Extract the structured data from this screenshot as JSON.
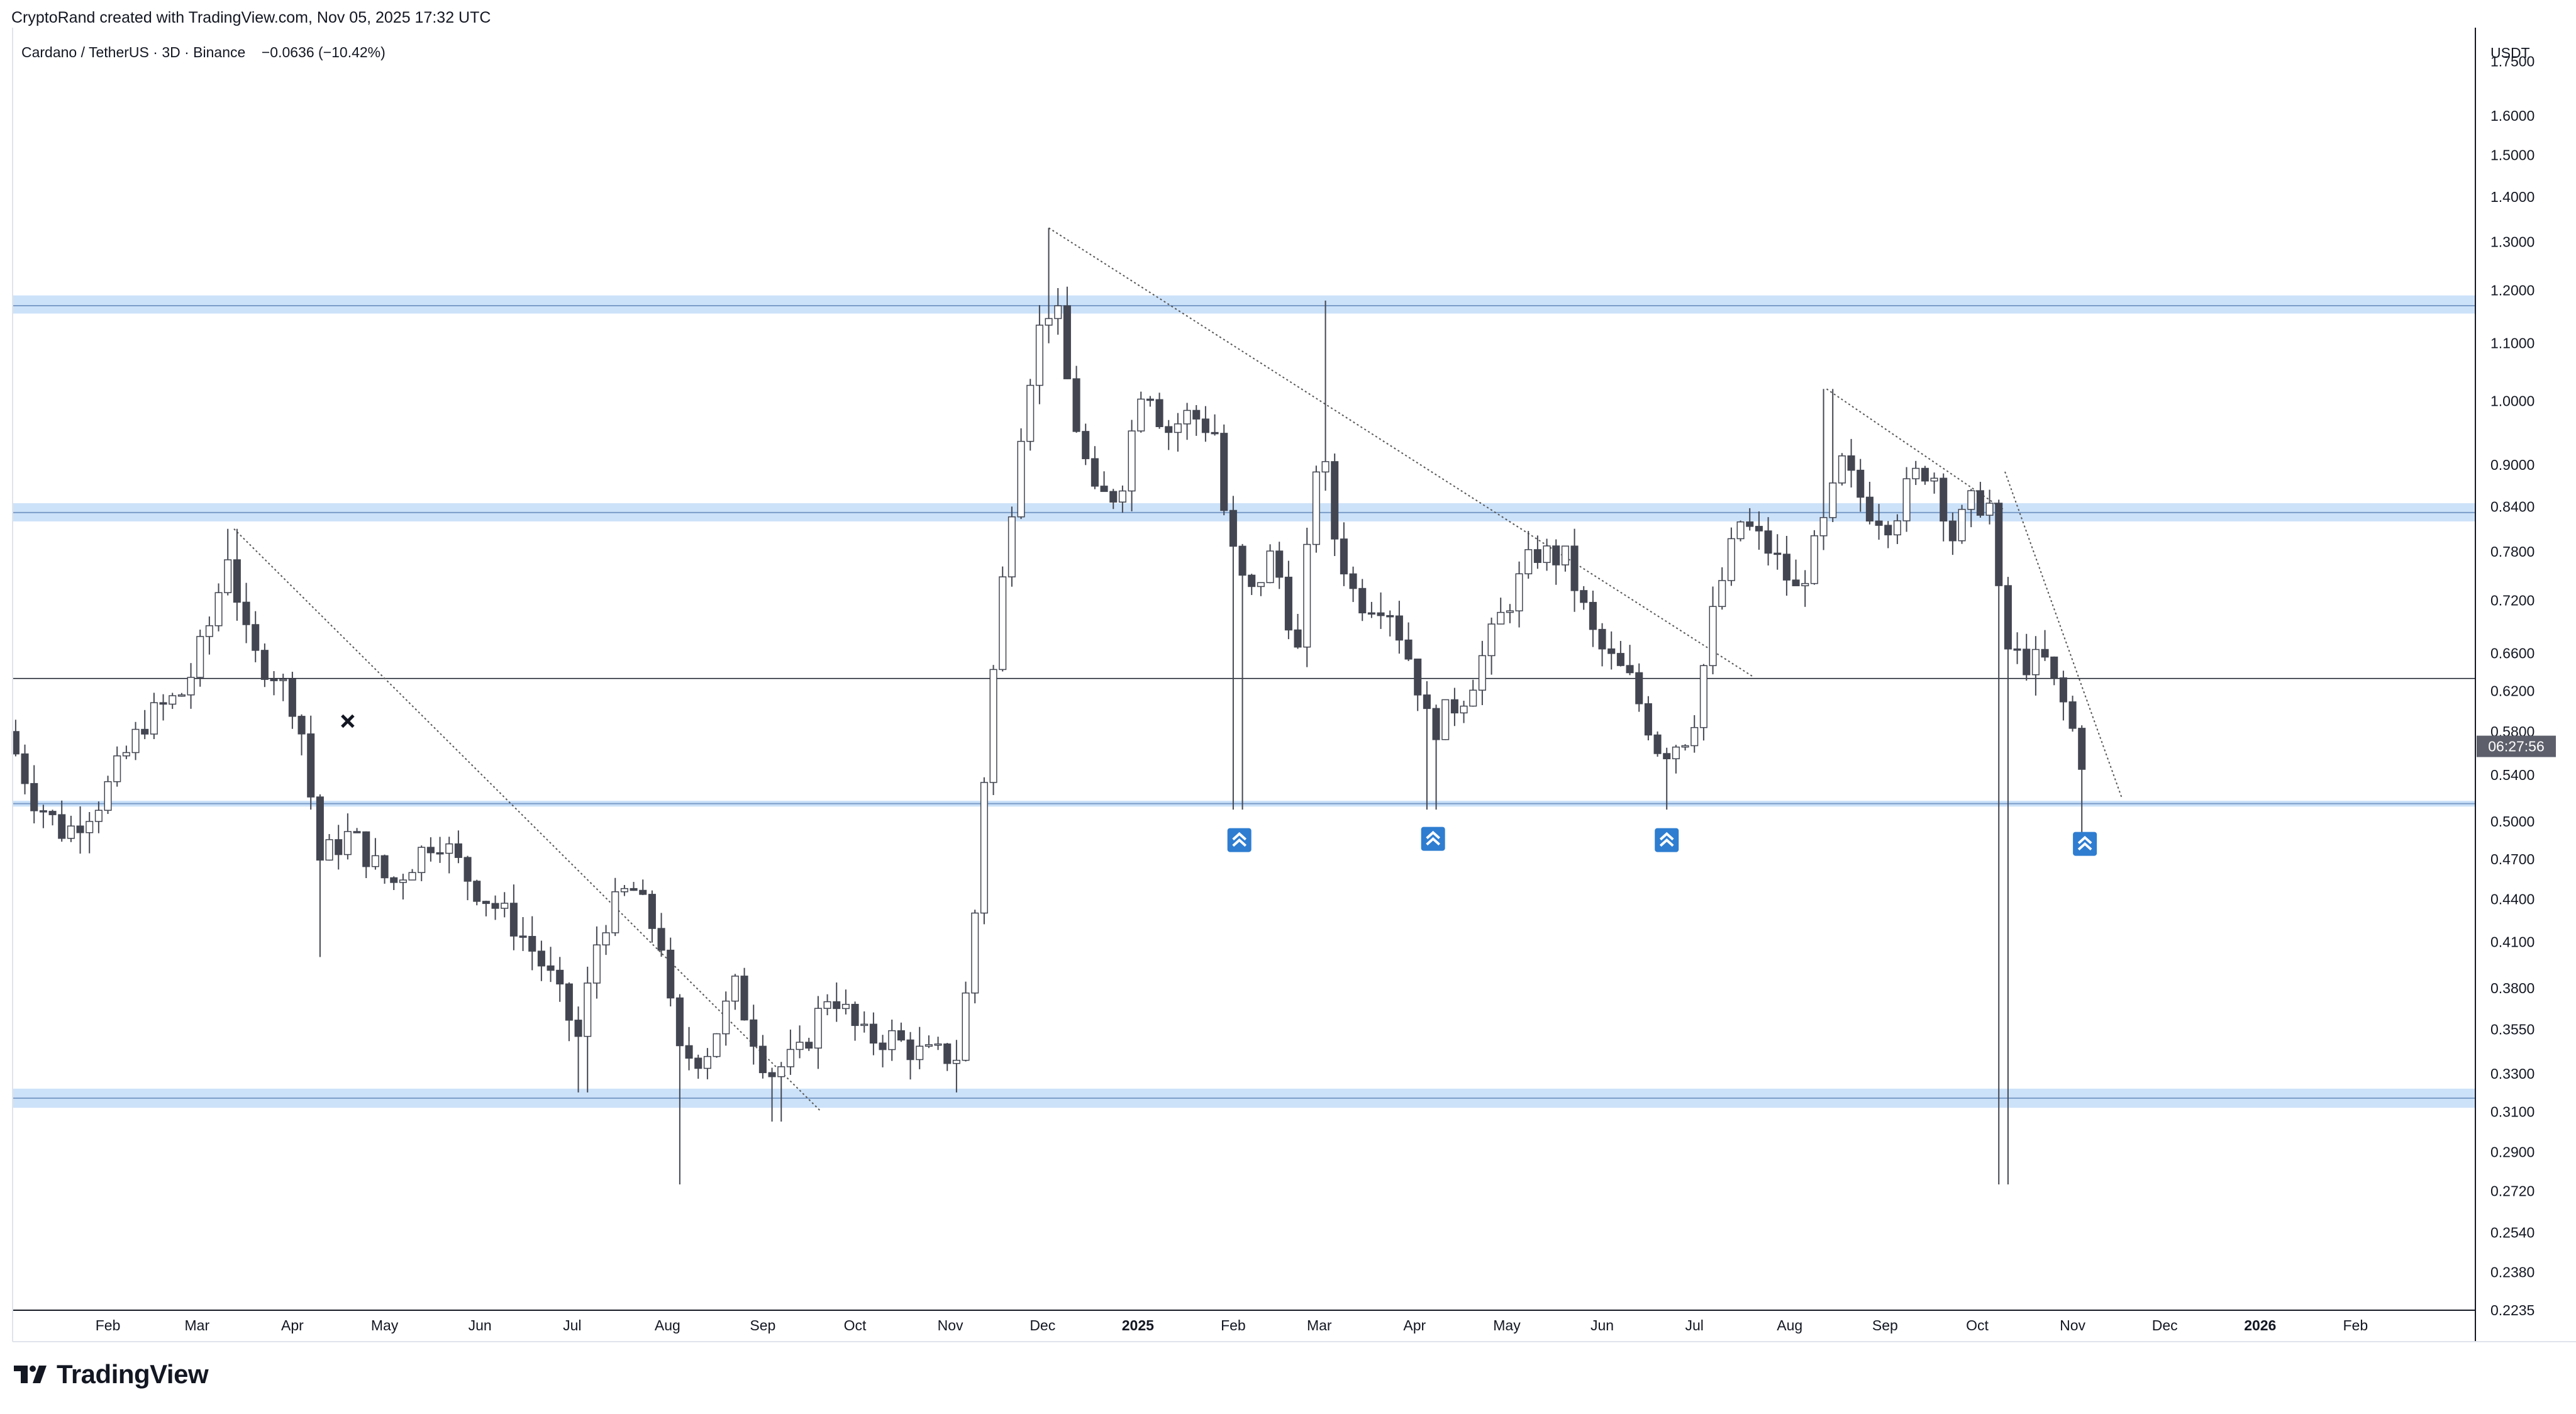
{
  "header": {
    "credit": "CryptoRand created with TradingView.com, Nov 05, 2025 17:32 UTC"
  },
  "symbol": {
    "name": "Cardano / TetherUS",
    "interval": "3D",
    "exchange": "Binance",
    "change": "−0.0636 (−10.42%)",
    "separator": "·"
  },
  "footer": {
    "brand": "TradingView"
  },
  "colors": {
    "up_candle": "#ffffff",
    "down_candle": "#434651",
    "wick": "#434651",
    "zone_fill": "#bbd8f7",
    "zone_line": "#7a9cc8",
    "marker": "#2e7dd1",
    "price_tag": "#5d606b"
  },
  "chart_data": {
    "type": "candlestick",
    "title": "Cardano / TetherUS · 3D · Binance",
    "quote_currency": "USDT",
    "scale": "log",
    "countdown_label": "06:27:56",
    "ylim": [
      0.2235,
      1.85
    ],
    "y_ticks": [
      "1.7500",
      "1.6000",
      "1.5000",
      "1.4000",
      "1.3000",
      "1.2000",
      "1.1000",
      "1.0000",
      "0.9000",
      "0.8400",
      "0.7800",
      "0.7200",
      "0.6600",
      "0.6200",
      "0.5800",
      "0.5400",
      "0.5000",
      "0.4700",
      "0.4400",
      "0.4100",
      "0.3800",
      "0.3550",
      "0.3300",
      "0.3100",
      "0.2900",
      "0.2720",
      "0.2540",
      "0.2380",
      "0.2235"
    ],
    "x_range": [
      "2024-01-01",
      "2026-03-12"
    ],
    "x_ticks": [
      {
        "date": "2024-02-01",
        "label": "Feb"
      },
      {
        "date": "2024-03-01",
        "label": "Mar"
      },
      {
        "date": "2024-04-01",
        "label": "Apr"
      },
      {
        "date": "2024-05-01",
        "label": "May"
      },
      {
        "date": "2024-06-01",
        "label": "Jun"
      },
      {
        "date": "2024-07-01",
        "label": "Jul"
      },
      {
        "date": "2024-08-01",
        "label": "Aug"
      },
      {
        "date": "2024-09-01",
        "label": "Sep"
      },
      {
        "date": "2024-10-01",
        "label": "Oct"
      },
      {
        "date": "2024-11-01",
        "label": "Nov"
      },
      {
        "date": "2024-12-01",
        "label": "Dec"
      },
      {
        "date": "2025-01-01",
        "label": "2025",
        "bold": true
      },
      {
        "date": "2025-02-01",
        "label": "Feb"
      },
      {
        "date": "2025-03-01",
        "label": "Mar"
      },
      {
        "date": "2025-04-01",
        "label": "Apr"
      },
      {
        "date": "2025-05-01",
        "label": "May"
      },
      {
        "date": "2025-06-01",
        "label": "Jun"
      },
      {
        "date": "2025-07-01",
        "label": "Jul"
      },
      {
        "date": "2025-08-01",
        "label": "Aug"
      },
      {
        "date": "2025-09-01",
        "label": "Sep"
      },
      {
        "date": "2025-10-01",
        "label": "Oct"
      },
      {
        "date": "2025-11-01",
        "label": "Nov"
      },
      {
        "date": "2025-12-01",
        "label": "Dec"
      },
      {
        "date": "2026-01-01",
        "label": "2026",
        "bold": true
      },
      {
        "date": "2026-02-01",
        "label": "Feb"
      }
    ],
    "price_path": [
      [
        "2024-01-01",
        0.58
      ],
      [
        "2024-01-10",
        0.52
      ],
      [
        "2024-01-20",
        0.49
      ],
      [
        "2024-02-01",
        0.52
      ],
      [
        "2024-02-15",
        0.59
      ],
      [
        "2024-02-28",
        0.62
      ],
      [
        "2024-03-08",
        0.7
      ],
      [
        "2024-03-13",
        0.78
      ],
      [
        "2024-03-20",
        0.66
      ],
      [
        "2024-03-28",
        0.64
      ],
      [
        "2024-04-05",
        0.6
      ],
      [
        "2024-04-12",
        0.47
      ],
      [
        "2024-04-22",
        0.49
      ],
      [
        "2024-05-05",
        0.45
      ],
      [
        "2024-05-20",
        0.49
      ],
      [
        "2024-06-01",
        0.45
      ],
      [
        "2024-06-15",
        0.42
      ],
      [
        "2024-06-25",
        0.39
      ],
      [
        "2024-07-05",
        0.35
      ],
      [
        "2024-07-12",
        0.42
      ],
      [
        "2024-07-22",
        0.45
      ],
      [
        "2024-08-01",
        0.41
      ],
      [
        "2024-08-06",
        0.34
      ],
      [
        "2024-08-15",
        0.34
      ],
      [
        "2024-08-25",
        0.38
      ],
      [
        "2024-09-05",
        0.33
      ],
      [
        "2024-09-15",
        0.34
      ],
      [
        "2024-09-25",
        0.38
      ],
      [
        "2024-10-05",
        0.35
      ],
      [
        "2024-10-15",
        0.35
      ],
      [
        "2024-10-25",
        0.34
      ],
      [
        "2024-11-05",
        0.34
      ],
      [
        "2024-11-10",
        0.4
      ],
      [
        "2024-11-15",
        0.58
      ],
      [
        "2024-11-21",
        0.78
      ],
      [
        "2024-11-27",
        1.0
      ],
      [
        "2024-12-03",
        1.15
      ],
      [
        "2024-12-07",
        1.18
      ],
      [
        "2024-12-12",
        1.0
      ],
      [
        "2024-12-20",
        0.85
      ],
      [
        "2024-12-28",
        0.86
      ],
      [
        "2025-01-05",
        1.05
      ],
      [
        "2025-01-12",
        0.95
      ],
      [
        "2025-01-20",
        0.98
      ],
      [
        "2025-01-28",
        0.95
      ],
      [
        "2025-02-01",
        0.8
      ],
      [
        "2025-02-08",
        0.72
      ],
      [
        "2025-02-16",
        0.78
      ],
      [
        "2025-02-24",
        0.66
      ],
      [
        "2025-03-03",
        0.95
      ],
      [
        "2025-03-08",
        0.8
      ],
      [
        "2025-03-15",
        0.72
      ],
      [
        "2025-03-25",
        0.72
      ],
      [
        "2025-04-03",
        0.64
      ],
      [
        "2025-04-08",
        0.58
      ],
      [
        "2025-04-20",
        0.62
      ],
      [
        "2025-05-01",
        0.7
      ],
      [
        "2025-05-12",
        0.78
      ],
      [
        "2025-05-22",
        0.77
      ],
      [
        "2025-06-01",
        0.67
      ],
      [
        "2025-06-12",
        0.63
      ],
      [
        "2025-06-22",
        0.56
      ],
      [
        "2025-07-02",
        0.58
      ],
      [
        "2025-07-10",
        0.72
      ],
      [
        "2025-07-18",
        0.82
      ],
      [
        "2025-07-28",
        0.78
      ],
      [
        "2025-08-05",
        0.73
      ],
      [
        "2025-08-13",
        0.8
      ],
      [
        "2025-08-20",
        0.9
      ],
      [
        "2025-08-28",
        0.84
      ],
      [
        "2025-09-05",
        0.82
      ],
      [
        "2025-09-12",
        0.88
      ],
      [
        "2025-09-18",
        0.9
      ],
      [
        "2025-09-25",
        0.8
      ],
      [
        "2025-10-02",
        0.85
      ],
      [
        "2025-10-08",
        0.84
      ],
      [
        "2025-10-11",
        0.67
      ],
      [
        "2025-10-18",
        0.65
      ],
      [
        "2025-10-25",
        0.65
      ],
      [
        "2025-10-30",
        0.61
      ],
      [
        "2025-11-02",
        0.6
      ],
      [
        "2025-11-05",
        0.545
      ]
    ],
    "wicks": [
      {
        "date": "2024-08-05",
        "low": 0.275
      },
      {
        "date": "2024-09-06",
        "low": 0.305
      },
      {
        "date": "2024-07-05",
        "low": 0.32
      },
      {
        "date": "2024-11-03",
        "low": 0.32
      },
      {
        "date": "2024-12-03",
        "high": 1.33
      },
      {
        "date": "2025-02-03",
        "low": 0.51
      },
      {
        "date": "2025-03-03",
        "high": 1.18
      },
      {
        "date": "2025-04-07",
        "low": 0.51
      },
      {
        "date": "2025-06-22",
        "low": 0.51
      },
      {
        "date": "2025-08-14",
        "high": 1.02
      },
      {
        "date": "2025-10-10",
        "low": 0.275
      },
      {
        "date": "2025-11-05",
        "low": 0.49
      },
      {
        "date": "2024-03-13",
        "high": 0.81
      },
      {
        "date": "2024-04-10",
        "low": 0.4
      }
    ],
    "zones": [
      {
        "low": 1.155,
        "high": 1.19,
        "center": 1.17
      },
      {
        "low": 0.82,
        "high": 0.845,
        "center": 0.832
      },
      {
        "low": 0.5125,
        "high": 0.5175,
        "center": 0.515
      },
      {
        "low": 0.312,
        "high": 0.322,
        "center": 0.317
      }
    ],
    "current_price_line": 0.633,
    "trendlines": [
      {
        "from": [
          "2024-03-13",
          0.81
        ],
        "to": [
          "2024-09-20",
          0.31
        ]
      },
      {
        "from": [
          "2024-12-03",
          1.33
        ],
        "to": [
          "2025-07-20",
          0.635
        ]
      },
      {
        "from": [
          "2025-08-13",
          1.02
        ],
        "to": [
          "2025-10-10",
          0.835
        ]
      },
      {
        "from": [
          "2025-10-10",
          0.89
        ],
        "to": [
          "2025-11-17",
          0.52
        ]
      }
    ],
    "markers": [
      {
        "date": "2025-02-03",
        "price": 0.485,
        "icon": "double-chevron-up-icon"
      },
      {
        "date": "2025-04-07",
        "price": 0.486,
        "icon": "double-chevron-up-icon"
      },
      {
        "date": "2025-06-22",
        "price": 0.485,
        "icon": "double-chevron-up-icon"
      },
      {
        "date": "2025-11-05",
        "price": 0.482,
        "icon": "double-chevron-up-icon"
      }
    ],
    "cross_marker": {
      "date": "2024-04-19",
      "price": 0.59,
      "icon": "cross-icon"
    }
  }
}
